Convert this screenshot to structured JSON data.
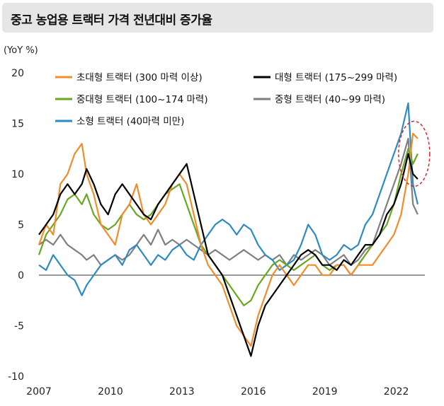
{
  "title": "중고 농업용 트랙터 가격 전년대비 증가율",
  "unit_label": "(YoY %)",
  "chart_data": {
    "type": "line",
    "title": "중고 농업용 트랙터 가격 전년대비 증가율",
    "ylabel": "(YoY %)",
    "xlabel": "",
    "xlim": [
      2007.0,
      2023.2
    ],
    "ylim": [
      -10,
      20
    ],
    "yticks": [
      -10,
      -5,
      0,
      5,
      10,
      15,
      20
    ],
    "xticks": [
      2007,
      2010,
      2013,
      2016,
      2019,
      2022
    ],
    "legend_position": "top",
    "annotation": "red dashed ellipse highlighting the latest values (late 2022)",
    "series": [
      {
        "name": "초대형 트랙터 (300 마력 이상)",
        "color": "#f28c28",
        "x": [
          2007.0,
          2007.3,
          2007.6,
          2007.9,
          2008.2,
          2008.5,
          2008.8,
          2009.0,
          2009.3,
          2009.6,
          2009.9,
          2010.2,
          2010.5,
          2010.8,
          2011.1,
          2011.4,
          2011.7,
          2012.0,
          2012.3,
          2012.6,
          2012.9,
          2013.2,
          2013.5,
          2013.8,
          2014.1,
          2014.4,
          2014.7,
          2015.0,
          2015.3,
          2015.6,
          2015.9,
          2016.2,
          2016.5,
          2016.8,
          2017.1,
          2017.4,
          2017.7,
          2018.0,
          2018.3,
          2018.6,
          2018.9,
          2019.2,
          2019.5,
          2019.8,
          2020.1,
          2020.4,
          2020.7,
          2021.0,
          2021.3,
          2021.6,
          2021.9,
          2022.2,
          2022.5,
          2022.7,
          2022.9
        ],
        "values": [
          3,
          5,
          4,
          9,
          10,
          12,
          13,
          10,
          8,
          5,
          4,
          3,
          6,
          7,
          9,
          6,
          5,
          6,
          7,
          9,
          10,
          9,
          6,
          3,
          1,
          0,
          -1,
          -3,
          -5,
          -6,
          -7,
          -4,
          -2,
          0,
          1,
          0,
          -1,
          0,
          1,
          1,
          0,
          0,
          1,
          1,
          0,
          1,
          1,
          1,
          2,
          3,
          4,
          6,
          10,
          14,
          13.5
        ]
      },
      {
        "name": "대형 트랙터 (175~299 마력)",
        "color": "#000000",
        "x": [
          2007.0,
          2007.3,
          2007.6,
          2007.9,
          2008.2,
          2008.5,
          2008.8,
          2009.0,
          2009.3,
          2009.6,
          2009.9,
          2010.2,
          2010.5,
          2010.8,
          2011.1,
          2011.4,
          2011.7,
          2012.0,
          2012.3,
          2012.6,
          2012.9,
          2013.2,
          2013.5,
          2013.8,
          2014.1,
          2014.4,
          2014.7,
          2015.0,
          2015.3,
          2015.6,
          2015.9,
          2016.2,
          2016.5,
          2016.8,
          2017.1,
          2017.4,
          2017.7,
          2018.0,
          2018.3,
          2018.6,
          2018.9,
          2019.2,
          2019.5,
          2019.8,
          2020.1,
          2020.4,
          2020.7,
          2021.0,
          2021.3,
          2021.6,
          2021.9,
          2022.2,
          2022.5,
          2022.7,
          2022.9
        ],
        "values": [
          4,
          5,
          6,
          8,
          9,
          8,
          9,
          10.5,
          9,
          7,
          6,
          8,
          9,
          8,
          7,
          6,
          5.5,
          7,
          8,
          9,
          10,
          11,
          8,
          5,
          2,
          1,
          0,
          -2,
          -4,
          -6,
          -8,
          -5,
          -3,
          -2,
          -1,
          0,
          1,
          2,
          2.5,
          2,
          1,
          1,
          0.5,
          1.5,
          1,
          2,
          3,
          3,
          4,
          6,
          7,
          9,
          12,
          10,
          9.5
        ]
      },
      {
        "name": "중대형 트랙터 (100~174 마력)",
        "color": "#6aa621",
        "x": [
          2007.0,
          2007.3,
          2007.6,
          2007.9,
          2008.2,
          2008.5,
          2008.8,
          2009.0,
          2009.3,
          2009.6,
          2009.9,
          2010.2,
          2010.5,
          2010.8,
          2011.1,
          2011.4,
          2011.7,
          2012.0,
          2012.3,
          2012.6,
          2012.9,
          2013.2,
          2013.5,
          2013.8,
          2014.1,
          2014.4,
          2014.7,
          2015.0,
          2015.3,
          2015.6,
          2015.9,
          2016.2,
          2016.5,
          2016.8,
          2017.1,
          2017.4,
          2017.7,
          2018.0,
          2018.3,
          2018.6,
          2018.9,
          2019.2,
          2019.5,
          2019.8,
          2020.1,
          2020.4,
          2020.7,
          2021.0,
          2021.3,
          2021.6,
          2021.9,
          2022.2,
          2022.5,
          2022.7,
          2022.9
        ],
        "values": [
          2,
          4,
          5,
          6,
          7.5,
          8,
          7,
          8,
          6,
          5,
          4.5,
          5,
          6,
          7,
          6,
          5.5,
          6,
          7,
          8,
          8.5,
          9,
          7,
          5,
          3,
          2,
          1,
          0,
          -1,
          -2,
          -3,
          -2.5,
          -1,
          0,
          1,
          1.5,
          1,
          0.5,
          1,
          1.5,
          2,
          1,
          0.5,
          1,
          1,
          0,
          1,
          2,
          3,
          4,
          5,
          7,
          10,
          12.5,
          11,
          12
        ]
      },
      {
        "name": "중형 트랙터 (40~99 마력)",
        "color": "#7f7f7f",
        "x": [
          2007.0,
          2007.3,
          2007.6,
          2007.9,
          2008.2,
          2008.5,
          2008.8,
          2009.0,
          2009.3,
          2009.6,
          2009.9,
          2010.2,
          2010.5,
          2010.8,
          2011.1,
          2011.4,
          2011.7,
          2012.0,
          2012.3,
          2012.6,
          2012.9,
          2013.2,
          2013.5,
          2013.8,
          2014.1,
          2014.4,
          2014.7,
          2015.0,
          2015.3,
          2015.6,
          2015.9,
          2016.2,
          2016.5,
          2016.8,
          2017.1,
          2017.4,
          2017.7,
          2018.0,
          2018.3,
          2018.6,
          2018.9,
          2019.2,
          2019.5,
          2019.8,
          2020.1,
          2020.4,
          2020.7,
          2021.0,
          2021.3,
          2021.6,
          2021.9,
          2022.2,
          2022.5,
          2022.7,
          2022.9
        ],
        "values": [
          3,
          3.5,
          3,
          4,
          3,
          2.5,
          2,
          1.5,
          2,
          1,
          1.5,
          2,
          1.5,
          2,
          3,
          4,
          3,
          4.5,
          3,
          3.5,
          3,
          3.5,
          3,
          2.5,
          2,
          2.5,
          2,
          1.5,
          2,
          2.5,
          2,
          1.5,
          2,
          1.5,
          2,
          1,
          2,
          1.5,
          2,
          2.5,
          2,
          1,
          1.5,
          2,
          1,
          1.5,
          2.5,
          3,
          5,
          7,
          9,
          11,
          13.5,
          7,
          6
        ]
      },
      {
        "name": "소형 트랙터 (40마력 미만)",
        "color": "#2e8bc0",
        "x": [
          2007.0,
          2007.3,
          2007.6,
          2007.9,
          2008.2,
          2008.5,
          2008.8,
          2009.0,
          2009.3,
          2009.6,
          2009.9,
          2010.2,
          2010.5,
          2010.8,
          2011.1,
          2011.4,
          2011.7,
          2012.0,
          2012.3,
          2012.6,
          2012.9,
          2013.2,
          2013.5,
          2013.8,
          2014.1,
          2014.4,
          2014.7,
          2015.0,
          2015.3,
          2015.6,
          2015.9,
          2016.2,
          2016.5,
          2016.8,
          2017.1,
          2017.4,
          2017.7,
          2018.0,
          2018.3,
          2018.6,
          2018.9,
          2019.2,
          2019.5,
          2019.8,
          2020.1,
          2020.4,
          2020.7,
          2021.0,
          2021.3,
          2021.6,
          2021.9,
          2022.2,
          2022.5,
          2022.7,
          2022.9
        ],
        "values": [
          1,
          0.5,
          2,
          1,
          0,
          -0.5,
          -2,
          -1,
          0,
          1,
          1.5,
          2,
          1,
          2.5,
          3,
          2,
          1,
          2,
          1.5,
          2.5,
          3,
          2,
          1.5,
          3,
          4,
          5,
          5.5,
          5,
          4,
          5,
          4.5,
          3,
          2,
          1.5,
          0.5,
          1,
          1.5,
          3,
          5,
          4,
          2,
          1.5,
          2,
          3,
          2.5,
          3,
          5,
          6,
          8,
          10,
          12,
          14,
          17,
          9,
          7
        ]
      }
    ]
  }
}
